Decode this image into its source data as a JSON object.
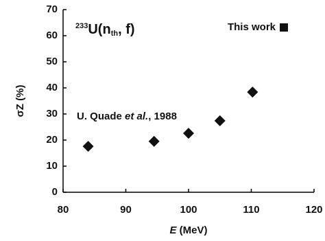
{
  "chart_data": {
    "type": "scatter",
    "title": {
      "mass": "233",
      "text": "U(n",
      "sub": "th",
      "end": ", f)"
    },
    "x_label": [
      "E",
      " (MeV)"
    ],
    "y_label": "σZ (%)",
    "annotation": [
      "U. Quade ",
      "et al.",
      ", 1988"
    ],
    "series": [
      {
        "name": "This work",
        "color": "#111111",
        "x": [
          84,
          94.5,
          100,
          105,
          110.2
        ],
        "values": [
          17.6,
          19.5,
          22.6,
          27.4,
          38.4
        ]
      }
    ],
    "xlim": [
      80,
      120
    ],
    "xticks": [
      80,
      90,
      100,
      110,
      120
    ],
    "ylim": [
      0,
      70
    ],
    "yticks": [
      0,
      10,
      20,
      30,
      40,
      50,
      60,
      70
    ],
    "grid": false,
    "legend": "top-right"
  }
}
